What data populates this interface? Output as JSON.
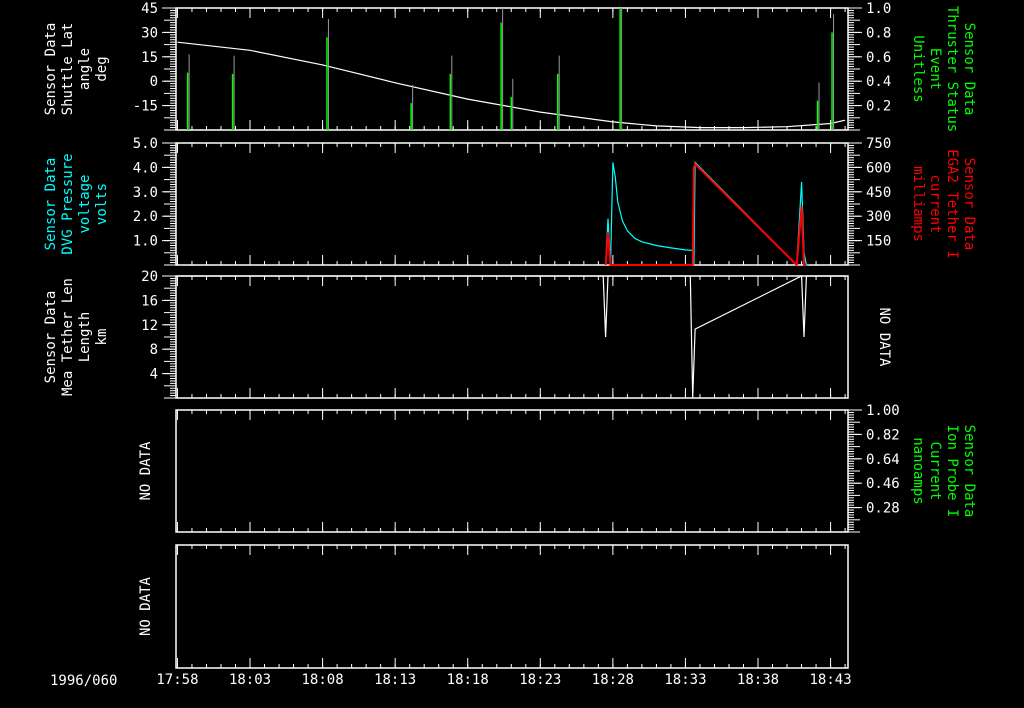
{
  "date_label": "1996/060",
  "x_ticks": [
    "17:58",
    "18:03",
    "18:08",
    "18:13",
    "18:18",
    "18:23",
    "18:28",
    "18:33",
    "18:38",
    "18:43"
  ],
  "colors": {
    "background": "#000000",
    "axes": "#ffffff",
    "green": "#00ff00",
    "cyan": "#00ffff",
    "red": "#ff0000",
    "gray": "#aaaaaa"
  },
  "chart_data": [
    {
      "type": "line",
      "panel": 1,
      "xlim": [
        "17:57:54",
        "18:44:12"
      ],
      "left_axis": {
        "label": [
          "Sensor Data",
          "Shuttle Lat",
          "angle",
          "deg"
        ],
        "ylim": [
          -30,
          45
        ],
        "ticks": [
          "45",
          "30",
          "15",
          "0",
          "-15"
        ],
        "color": "#ffffff"
      },
      "right_axis": {
        "label": [
          "Sensor Data",
          "Thruster Status",
          "Event",
          "Unitless"
        ],
        "ylim": [
          0,
          1
        ],
        "ticks": [
          "1.0",
          "0.8",
          "0.6",
          "0.4",
          "0.2"
        ],
        "color": "#00ff00"
      },
      "series": [
        {
          "name": "Shuttle Lat",
          "axis": "left",
          "color": "#ffffff",
          "x": [
            "17:58",
            "18:03",
            "18:08",
            "18:13",
            "18:18",
            "18:23",
            "18:28",
            "18:31",
            "18:34",
            "18:37",
            "18:40",
            "18:43",
            "18:44"
          ],
          "y": [
            24,
            19,
            10,
            -1,
            -11,
            -19,
            -25,
            -27.5,
            -28.5,
            -28.5,
            -28,
            -26,
            -24
          ]
        },
        {
          "name": "Thruster Status",
          "axis": "right",
          "color": "#00ff00",
          "style": "spikes",
          "x": [
            "17:58:42",
            "18:01:48",
            "18:08:18",
            "18:14:06",
            "18:16:48",
            "18:20:18",
            "18:21:00",
            "18:24:12",
            "18:28:30",
            "18:42:06",
            "18:43:06"
          ],
          "y": [
            0.47,
            0.46,
            0.76,
            0.22,
            0.46,
            0.88,
            0.27,
            0.46,
            1.0,
            0.24,
            0.8
          ]
        }
      ]
    },
    {
      "type": "line",
      "panel": 2,
      "xlim": [
        "17:57:54",
        "18:44:12"
      ],
      "left_axis": {
        "label": [
          "Sensor Data",
          "DVG Pressure",
          "voltage",
          "volts"
        ],
        "ylim": [
          0,
          5
        ],
        "ticks": [
          "5.0",
          "4.0",
          "3.0",
          "2.0",
          "1.0"
        ],
        "color": "#00ffff"
      },
      "right_axis": {
        "label": [
          "Sensor Data",
          "EGA2 Tether I",
          "current",
          "milliamps"
        ],
        "ylim": [
          0,
          750
        ],
        "ticks": [
          "750",
          "600",
          "450",
          "300",
          "150"
        ],
        "color": "#ff0000"
      },
      "series": [
        {
          "name": "DVG Pressure",
          "axis": "left",
          "color": "#00ffff",
          "x": [
            "18:27:30",
            "18:27:40",
            "18:27:50",
            "18:28:00",
            "18:28:10",
            "18:28:20",
            "18:28:40",
            "18:29:00",
            "18:29:30",
            "18:30:00",
            "18:31:00",
            "18:32:00",
            "18:33:00",
            "18:33:30",
            "18:33:35",
            "18:33:40",
            "18:40:40",
            "18:41:00",
            "18:41:10",
            "18:41:20",
            "18:41:30"
          ],
          "y": [
            0,
            1.9,
            0,
            4.2,
            3.6,
            2.6,
            1.8,
            1.4,
            1.1,
            0.95,
            0.8,
            0.7,
            0.62,
            0.6,
            0,
            4.2,
            0,
            3.4,
            0.5,
            0,
            0
          ]
        },
        {
          "name": "EGA2 Tether I",
          "axis": "right",
          "color": "#ff0000",
          "x": [
            "18:27:30",
            "18:27:40",
            "18:27:50",
            "18:33:30",
            "18:33:35",
            "18:33:40",
            "18:40:40",
            "18:41:00",
            "18:41:10",
            "18:41:20"
          ],
          "y": [
            0,
            200,
            0,
            0,
            600,
            620,
            0,
            360,
            0,
            0
          ]
        }
      ]
    },
    {
      "type": "line",
      "panel": 3,
      "xlim": [
        "17:57:54",
        "18:44:12"
      ],
      "left_axis": {
        "label": [
          "Sensor Data",
          "Mea Tether Len",
          "Length",
          "km"
        ],
        "ylim": [
          0,
          20
        ],
        "ticks": [
          "20",
          "16",
          "12",
          "8",
          "4"
        ],
        "color": "#ffffff"
      },
      "right_axis": {
        "no_data": "NO DATA"
      },
      "series": [
        {
          "name": "Mea Tether Len",
          "axis": "left",
          "color": "#ffffff",
          "x": [
            "17:58",
            "18:27:20",
            "18:27:30",
            "18:27:40",
            "18:33:20",
            "18:33:30",
            "18:33:40",
            "18:41:00",
            "18:41:10",
            "18:41:20",
            "18:44"
          ],
          "y": [
            20,
            20,
            10,
            20,
            20,
            0,
            11.3,
            20,
            10,
            20,
            20
          ]
        }
      ]
    },
    {
      "type": "line",
      "panel": 4,
      "left_axis": {
        "no_data": "NO DATA"
      },
      "right_axis": {
        "label": [
          "Sensor Data",
          "Ion Probe I",
          "Current",
          "nanoamps"
        ],
        "ylim": [
          0.1,
          1.0
        ],
        "ticks": [
          "1.00",
          "0.82",
          "0.64",
          "0.46",
          "0.28"
        ],
        "color": "#00ff00"
      },
      "series": []
    },
    {
      "type": "line",
      "panel": 5,
      "left_axis": {
        "no_data": "NO DATA"
      },
      "series": []
    }
  ]
}
